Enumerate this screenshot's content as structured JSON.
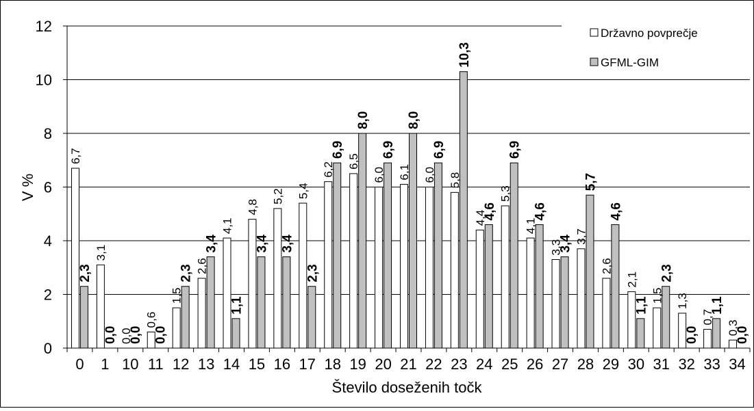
{
  "chart_data": {
    "type": "bar",
    "title": "",
    "xlabel": "Število doseženih točk",
    "ylabel": "V %",
    "ylim": [
      0,
      12
    ],
    "yticks": [
      "0",
      "2",
      "4",
      "6",
      "8",
      "10",
      "12"
    ],
    "grid": true,
    "legend_position": "top-right",
    "categories": [
      "0",
      "1",
      "10",
      "11",
      "12",
      "13",
      "14",
      "15",
      "16",
      "17",
      "18",
      "19",
      "20",
      "21",
      "22",
      "23",
      "24",
      "25",
      "26",
      "27",
      "28",
      "29",
      "30",
      "31",
      "32",
      "33",
      "34"
    ],
    "series": [
      {
        "name": "Državno povprečje",
        "color": "#ffffff",
        "values": [
          6.7,
          3.1,
          0.0,
          0.6,
          1.5,
          2.6,
          4.1,
          4.8,
          5.2,
          5.4,
          6.2,
          6.5,
          6.0,
          6.1,
          6.0,
          5.8,
          4.4,
          5.3,
          4.1,
          3.3,
          3.7,
          2.6,
          2.1,
          1.5,
          1.3,
          0.7,
          0.3
        ],
        "labels": [
          "6,7",
          "3,1",
          "0,0",
          "0,6",
          "1,5",
          "2,6",
          "4,1",
          "4,8",
          "5,2",
          "5,4",
          "6,2",
          "6,5",
          "6,0",
          "6,1",
          "6,0",
          "5,8",
          "4,4",
          "5,3",
          "4,1",
          "3,3",
          "3,7",
          "2,6",
          "2,1",
          "1,5",
          "1,3",
          "0,7",
          "0,3"
        ]
      },
      {
        "name": "GFML-GIM",
        "color": "#c0c0c0",
        "values": [
          2.3,
          0.0,
          0.0,
          0.0,
          2.3,
          3.4,
          1.1,
          3.4,
          3.4,
          2.3,
          6.9,
          8.0,
          6.9,
          8.0,
          6.9,
          10.3,
          4.6,
          6.9,
          4.6,
          3.4,
          5.7,
          4.6,
          1.1,
          2.3,
          0.0,
          1.1,
          0.0
        ],
        "labels": [
          "2,3",
          "0,0",
          "0,0",
          "0,0",
          "2,3",
          "3,4",
          "1,1",
          "3,4",
          "3,4",
          "2,3",
          "6,9",
          "8,0",
          "6,9",
          "8,0",
          "6,9",
          "10,3",
          "4,6",
          "6,9",
          "4,6",
          "3,4",
          "5,7",
          "4,6",
          "1,1",
          "2,3",
          "0,0",
          "1,1",
          "0,0"
        ]
      }
    ]
  }
}
